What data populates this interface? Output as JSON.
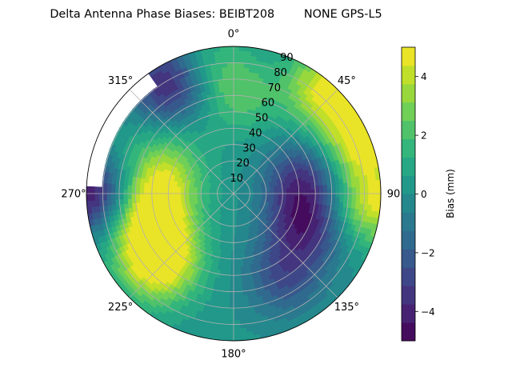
{
  "chart_data": {
    "type": "heatmap",
    "projection": "polar",
    "title": "Delta Antenna Phase Biases: BEIBT208        NONE GPS-L5",
    "angular_axis": {
      "zero_location": "top",
      "direction": "clockwise",
      "tick_labels": [
        "0°",
        "45°",
        "90",
        "135°",
        "180°",
        "225°",
        "270°",
        "315°"
      ]
    },
    "radial_axis": {
      "range": [
        0,
        90
      ],
      "tick_labels": [
        "10",
        "20",
        "30",
        "40",
        "50",
        "60",
        "70",
        "80",
        "90"
      ],
      "grid": true
    },
    "colorbar": {
      "label": "Bias (mm)",
      "range": [
        -5,
        5
      ],
      "tick_labels": [
        "−4",
        "−2",
        "0",
        "2",
        "4"
      ],
      "levels": [
        -5,
        -4.375,
        -3.75,
        -3.125,
        -2.5,
        -1.875,
        -1.25,
        -0.625,
        0,
        0.625,
        1.25,
        1.875,
        2.5,
        3.125,
        3.75,
        4.375,
        5
      ],
      "colormap": "viridis"
    },
    "no_data_region": {
      "azimuth_from": 272,
      "azimuth_to": 325,
      "zenith_from": 80,
      "zenith_to": 90
    },
    "features": [
      {
        "kind": "low",
        "azimuth": 115,
        "zenith": 48,
        "value": -3.8
      },
      {
        "kind": "low",
        "azimuth": 78,
        "zenith": 44,
        "value": -3.4
      },
      {
        "kind": "low",
        "azimuth": 150,
        "zenith": 60,
        "value": -2.6
      },
      {
        "kind": "low",
        "azimuth": 270,
        "zenith": 88,
        "value": -4.5
      },
      {
        "kind": "low",
        "azimuth": 330,
        "zenith": 78,
        "value": -4.2
      },
      {
        "kind": "high",
        "azimuth": 226,
        "zenith": 62,
        "value": 4.6
      },
      {
        "kind": "high",
        "azimuth": 245,
        "zenith": 56,
        "value": 3.6
      },
      {
        "kind": "high",
        "azimuth": 265,
        "zenith": 48,
        "value": 3.0
      },
      {
        "kind": "high",
        "azimuth": 292,
        "zenith": 45,
        "value": 2.5
      },
      {
        "kind": "high",
        "azimuth": 68,
        "zenith": 84,
        "value": 4.8
      },
      {
        "kind": "high",
        "azimuth": 42,
        "zenith": 85,
        "value": 4.4
      },
      {
        "kind": "high",
        "azimuth": 95,
        "zenith": 86,
        "value": 4.2
      },
      {
        "kind": "mid",
        "azimuth": 5,
        "zenith": 60,
        "value": 1.8
      },
      {
        "kind": "mid",
        "azimuth": 350,
        "zenith": 78,
        "value": 1.5
      }
    ]
  }
}
